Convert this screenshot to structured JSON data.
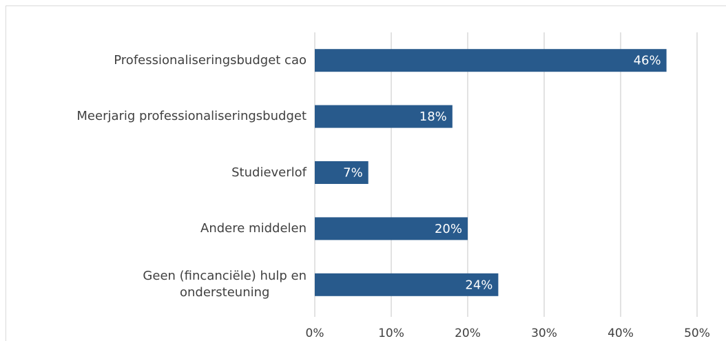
{
  "chart_data": {
    "type": "barh",
    "categories": [
      "Professionaliseringsbudget cao",
      "Meerjarig professionaliseringsbudget",
      "Studieverlof",
      "Andere middelen",
      "Geen (fincanciële) hulp en\nondersteuning"
    ],
    "values": [
      46,
      18,
      7,
      20,
      24
    ],
    "value_labels": [
      "46%",
      "18%",
      "7%",
      "20%",
      "24%"
    ],
    "color": "#285a8c",
    "xlim": [
      0,
      50
    ],
    "xticks": [
      {
        "value": 0,
        "label": "0%"
      },
      {
        "value": 10,
        "label": "10%"
      },
      {
        "value": 20,
        "label": "20%"
      },
      {
        "value": 30,
        "label": "30%"
      },
      {
        "value": 40,
        "label": "40%"
      },
      {
        "value": 50,
        "label": "50%"
      }
    ],
    "grid": true
  }
}
